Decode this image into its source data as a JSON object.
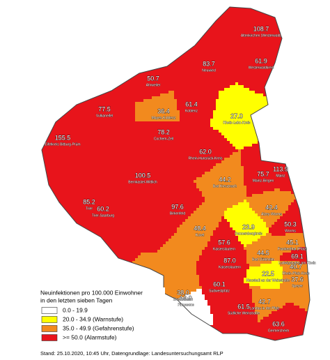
{
  "legend": {
    "title": [
      "Neuinfektionen pro 100.000 Einwohner",
      "in den letzten sieben Tagen"
    ],
    "items": [
      {
        "label": "0.0 - 19.9",
        "min": 0,
        "color": "#ffffff"
      },
      {
        "label": "20.0 - 34.9 (Warnstufe)",
        "min": 20,
        "color": "#ffff00"
      },
      {
        "label": "35.0 - 49.9 (Gefahrenstufe)",
        "min": 35,
        "color": "#f28a1e"
      },
      {
        "label": ">= 50.0 (Alarmstufe)",
        "min": 50,
        "color": "#e8141b"
      }
    ]
  },
  "districts": [
    {
      "value": "108.7",
      "name": "Altenkirchen (Westerwald)"
    },
    {
      "value": "61.9",
      "name": "Westerwaldkreis"
    },
    {
      "value": "83.7",
      "name": "Neuwied"
    },
    {
      "value": "50.7",
      "name": "Ahrweiler"
    },
    {
      "value": "61.4",
      "name": "Koblenz"
    },
    {
      "value": "36.4",
      "name": "Mayen-Koblenz"
    },
    {
      "value": "27.0",
      "name": "Rhein-Lahn-Kreis"
    },
    {
      "value": "77.5",
      "name": "Vulkaneifel"
    },
    {
      "value": "155.5",
      "name": "Eifelkreis Bitburg-Prüm"
    },
    {
      "value": "78.2",
      "name": "Cochem-Zell"
    },
    {
      "value": "62.0",
      "name": "Rhein-Hunsrück-Kreis"
    },
    {
      "value": "100.5",
      "name": "Bernkastel-Wittlich"
    },
    {
      "value": "75.7",
      "name": "Mainz-Bingen"
    },
    {
      "value": "113.9",
      "name": "Mainz"
    },
    {
      "value": "44.2",
      "name": "Bad Kreuznach"
    },
    {
      "value": "60.2",
      "name": "Trier-Saarburg"
    },
    {
      "value": "85.2",
      "name": "Trier"
    },
    {
      "value": "97.6",
      "name": "Birkenfeld"
    },
    {
      "value": "42.4",
      "name": "Alzey-Worms"
    },
    {
      "value": "23.9",
      "name": "Donnersbergkreis"
    },
    {
      "value": "48.4",
      "name": "Kusel"
    },
    {
      "value": "50.3",
      "name": "Worms"
    },
    {
      "value": "57.6",
      "name": "Kaiserslautern"
    },
    {
      "value": "45.1",
      "name": "Frankenthal (Pfalz)"
    },
    {
      "value": "87.0",
      "name": "Kaiserslautern"
    },
    {
      "value": "44.5",
      "name": "Bad Dürkheim"
    },
    {
      "value": "69.1",
      "name": "Ludwigshafen am Rhein"
    },
    {
      "value": "22.5",
      "name": "Neustadt an der Weinstraße"
    },
    {
      "value": "40.7",
      "name": "Rhein-Pfalz-Kreis"
    },
    {
      "value": "37.6",
      "name": "Speyer"
    },
    {
      "value": "38.0",
      "name": "Zweibrücken"
    },
    {
      "value": "60.1",
      "name": "Südwestpfalz"
    },
    {
      "value": "19.9",
      "name": "Pirmasens"
    },
    {
      "value": "42.7",
      "name": "Landau in der Pfalz"
    },
    {
      "value": "61.5",
      "name": "Südliche Weinstraße"
    },
    {
      "value": "63.6",
      "name": "Germersheim"
    }
  ],
  "footer": "Stand: 25.10.2020, 10:45 Uhr, Datengrundlage: Landesuntersuchungsamt RLP"
}
